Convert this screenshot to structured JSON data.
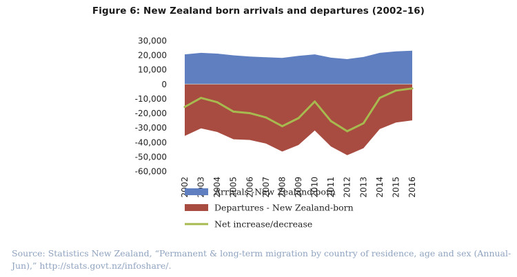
{
  "chart_data": {
    "type": "area",
    "title": "Figure 6: New Zealand born arrivals and departures (2002–16)",
    "xlabel": "",
    "ylabel": "",
    "ylim": [
      -60000,
      30000
    ],
    "yticks": [
      30000,
      20000,
      10000,
      0,
      -10000,
      -20000,
      -30000,
      -40000,
      -50000,
      -60000
    ],
    "ytick_labels": [
      "30,000",
      "20,000",
      "10,000",
      "0",
      "-10,000",
      "-20,000",
      "-30,000",
      "-40,000",
      "-50,000",
      "-60,000"
    ],
    "categories": [
      "2002",
      "2003",
      "2004",
      "2005",
      "2006",
      "2007",
      "2008",
      "2009",
      "2010",
      "2011",
      "2012",
      "2013",
      "2014",
      "2015",
      "2016"
    ],
    "series": [
      {
        "name": "Arrivals -New Zealand-born",
        "style": "area",
        "color": "#5f7fc1",
        "values": [
          20500,
          21500,
          21000,
          19800,
          19000,
          18500,
          18000,
          19500,
          20500,
          18200,
          17200,
          18700,
          21500,
          22500,
          23000
        ]
      },
      {
        "name": "Departures - New Zealand-born",
        "style": "area",
        "color": "#a84b40",
        "values": [
          -35700,
          -30500,
          -33000,
          -38000,
          -38500,
          -41000,
          -46500,
          -42000,
          -32000,
          -43000,
          -49000,
          -44200,
          -31000,
          -26500,
          -25000
        ]
      },
      {
        "name": "Net increase/decrease",
        "style": "line",
        "color": "#a7ba4f",
        "values": [
          -15700,
          -9500,
          -12500,
          -19000,
          -20000,
          -23000,
          -29000,
          -23500,
          -12000,
          -25500,
          -32500,
          -27000,
          -9500,
          -4500,
          -3000
        ]
      }
    ],
    "legend_position": "bottom"
  },
  "source": "Source: Statistics New Zealand, “Permanent & long-term migration by country of residence, age and sex (Annual-Jun),” http://stats.govt.nz/infoshare/."
}
